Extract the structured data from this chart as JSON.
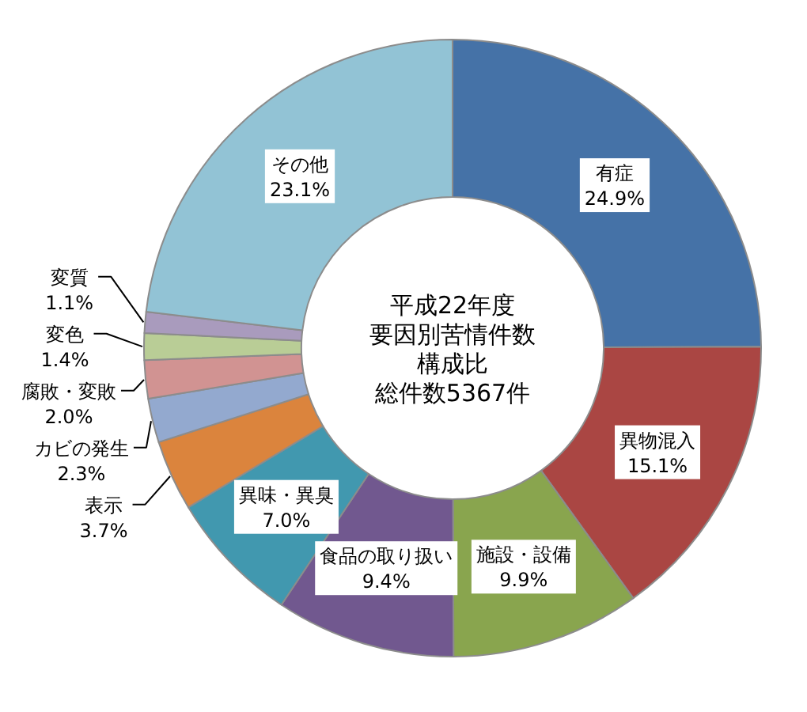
{
  "chart_data": {
    "type": "donut",
    "title": "平成22年度",
    "subtitle": "要因別苦情件数構成比",
    "annotations": [
      "総件数5367件"
    ],
    "categories": [
      "有症",
      "異物混入",
      "施設・設備",
      "食品の取り扱い",
      "異味・異臭",
      "表示",
      "カビの発生",
      "腐敗・変敗",
      "変色",
      "変質",
      "その他"
    ],
    "values": [
      24.9,
      15.1,
      9.9,
      9.4,
      7.0,
      3.7,
      2.3,
      2.0,
      1.4,
      1.1,
      23.1
    ],
    "value_labels": [
      "24.9%",
      "15.1%",
      "9.9%",
      "9.4%",
      "7.0%",
      "3.7%",
      "2.3%",
      "2.0%",
      "1.4%",
      "1.1%",
      "23.1%"
    ],
    "colors": [
      "#4572a7",
      "#aa4643",
      "#89a54e",
      "#71588f",
      "#4198af",
      "#db843d",
      "#93a9cf",
      "#d19392",
      "#b9cd96",
      "#a99bbd",
      "#92c3d5"
    ]
  }
}
